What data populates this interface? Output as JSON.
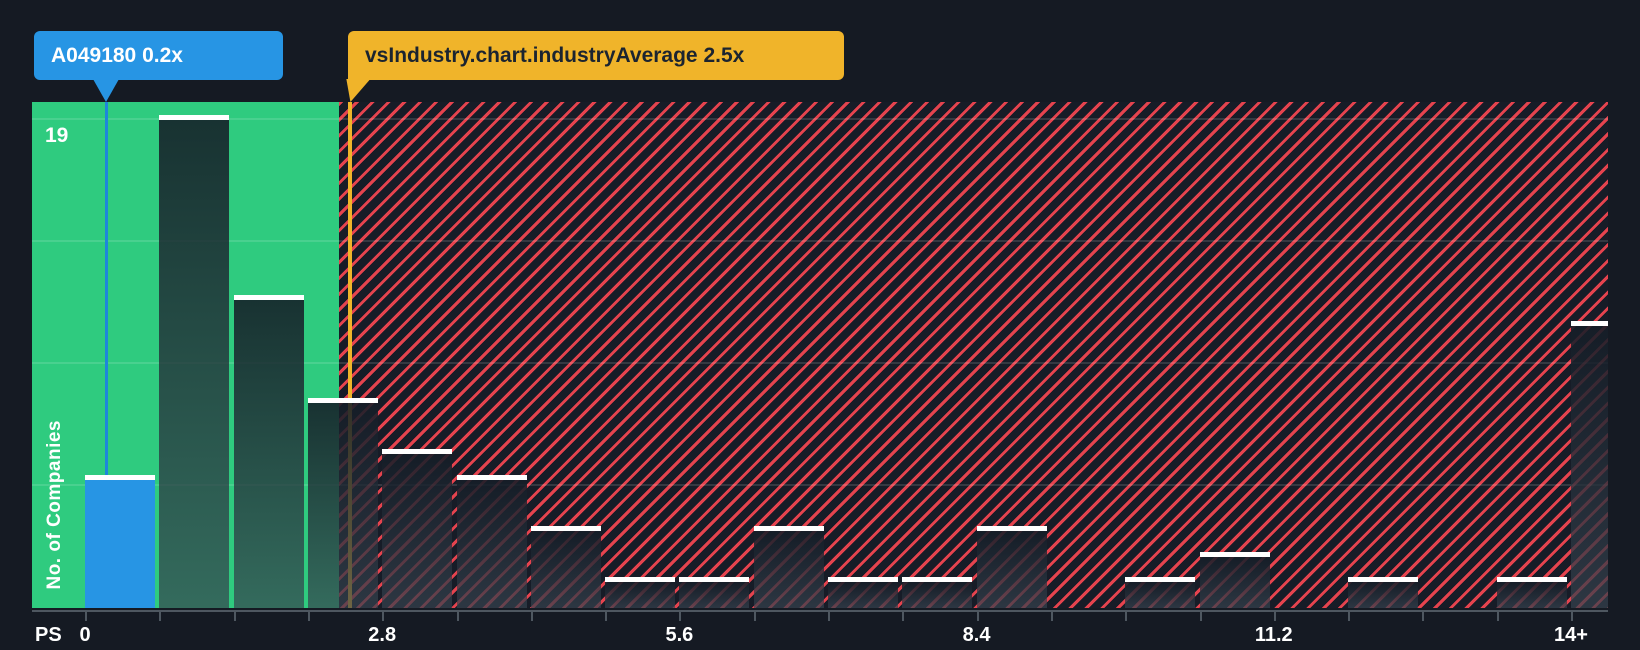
{
  "colors": {
    "background": "#151A23",
    "zone_below_average_green": "#2FCB7F",
    "hatch_background": "#171C27",
    "hatch_stripe_red": "#E5434E",
    "company_blue": "#2795E4",
    "industry_yellow": "#F0B42A",
    "bar_cap_white": "#FFFFFF",
    "axis_gray": "#4E5760"
  },
  "tooltips": {
    "company": {
      "label": "A049180 0.2x"
    },
    "industry": {
      "label": "vsIndustry.chart.industryAverage 2.5x"
    }
  },
  "y_axis": {
    "max_label": "19",
    "title": "No. of Companies"
  },
  "x_axis": {
    "unit_label": "PS",
    "ticks": [
      {
        "label": "0",
        "value": 0
      },
      {
        "label": "2.8",
        "value": 2.8
      },
      {
        "label": "5.6",
        "value": 5.6
      },
      {
        "label": "8.4",
        "value": 8.4
      },
      {
        "label": "11.2",
        "value": 11.2
      },
      {
        "label": "14+",
        "value": 14
      }
    ]
  },
  "chart_data": {
    "type": "bar",
    "xlabel": "PS",
    "ylabel": "No. of Companies",
    "bucket_width": 0.7,
    "bucket_starts": [
      0,
      0.7,
      1.4,
      2.1,
      2.8,
      3.5,
      4.2,
      4.9,
      5.6,
      6.3,
      7.0,
      7.7,
      8.4,
      9.1,
      9.8,
      10.5,
      11.2,
      11.9,
      12.6,
      13.3,
      14.0
    ],
    "values": [
      5,
      19,
      12,
      8,
      6,
      5,
      3,
      1,
      1,
      3,
      1,
      1,
      3,
      0,
      1,
      2,
      0,
      1,
      0,
      1,
      11
    ],
    "company_marker": {
      "name": "A049180",
      "value": 0.2,
      "display": "A049180 0.2x"
    },
    "industry_average_marker": {
      "value": 2.5,
      "display": "vsIndustry.chart.industryAverage 2.5x"
    },
    "x_tick_labels": [
      "0",
      "2.8",
      "5.6",
      "8.4",
      "11.2",
      "14+"
    ],
    "x_tick_values": [
      0,
      2.8,
      5.6,
      8.4,
      11.2,
      14
    ],
    "ylim": [
      0,
      19.7
    ],
    "xlim": [
      -0.5,
      14.35
    ],
    "y_gridlines": [
      4.75,
      9.5,
      14.25,
      19
    ],
    "grid": true,
    "legend": false,
    "zones": [
      {
        "range": [
          -0.5,
          2.5
        ],
        "style": "solid-green",
        "meaning": "below industry average"
      },
      {
        "range": [
          2.5,
          14.35
        ],
        "style": "red-hatch",
        "meaning": "above industry average"
      }
    ]
  }
}
